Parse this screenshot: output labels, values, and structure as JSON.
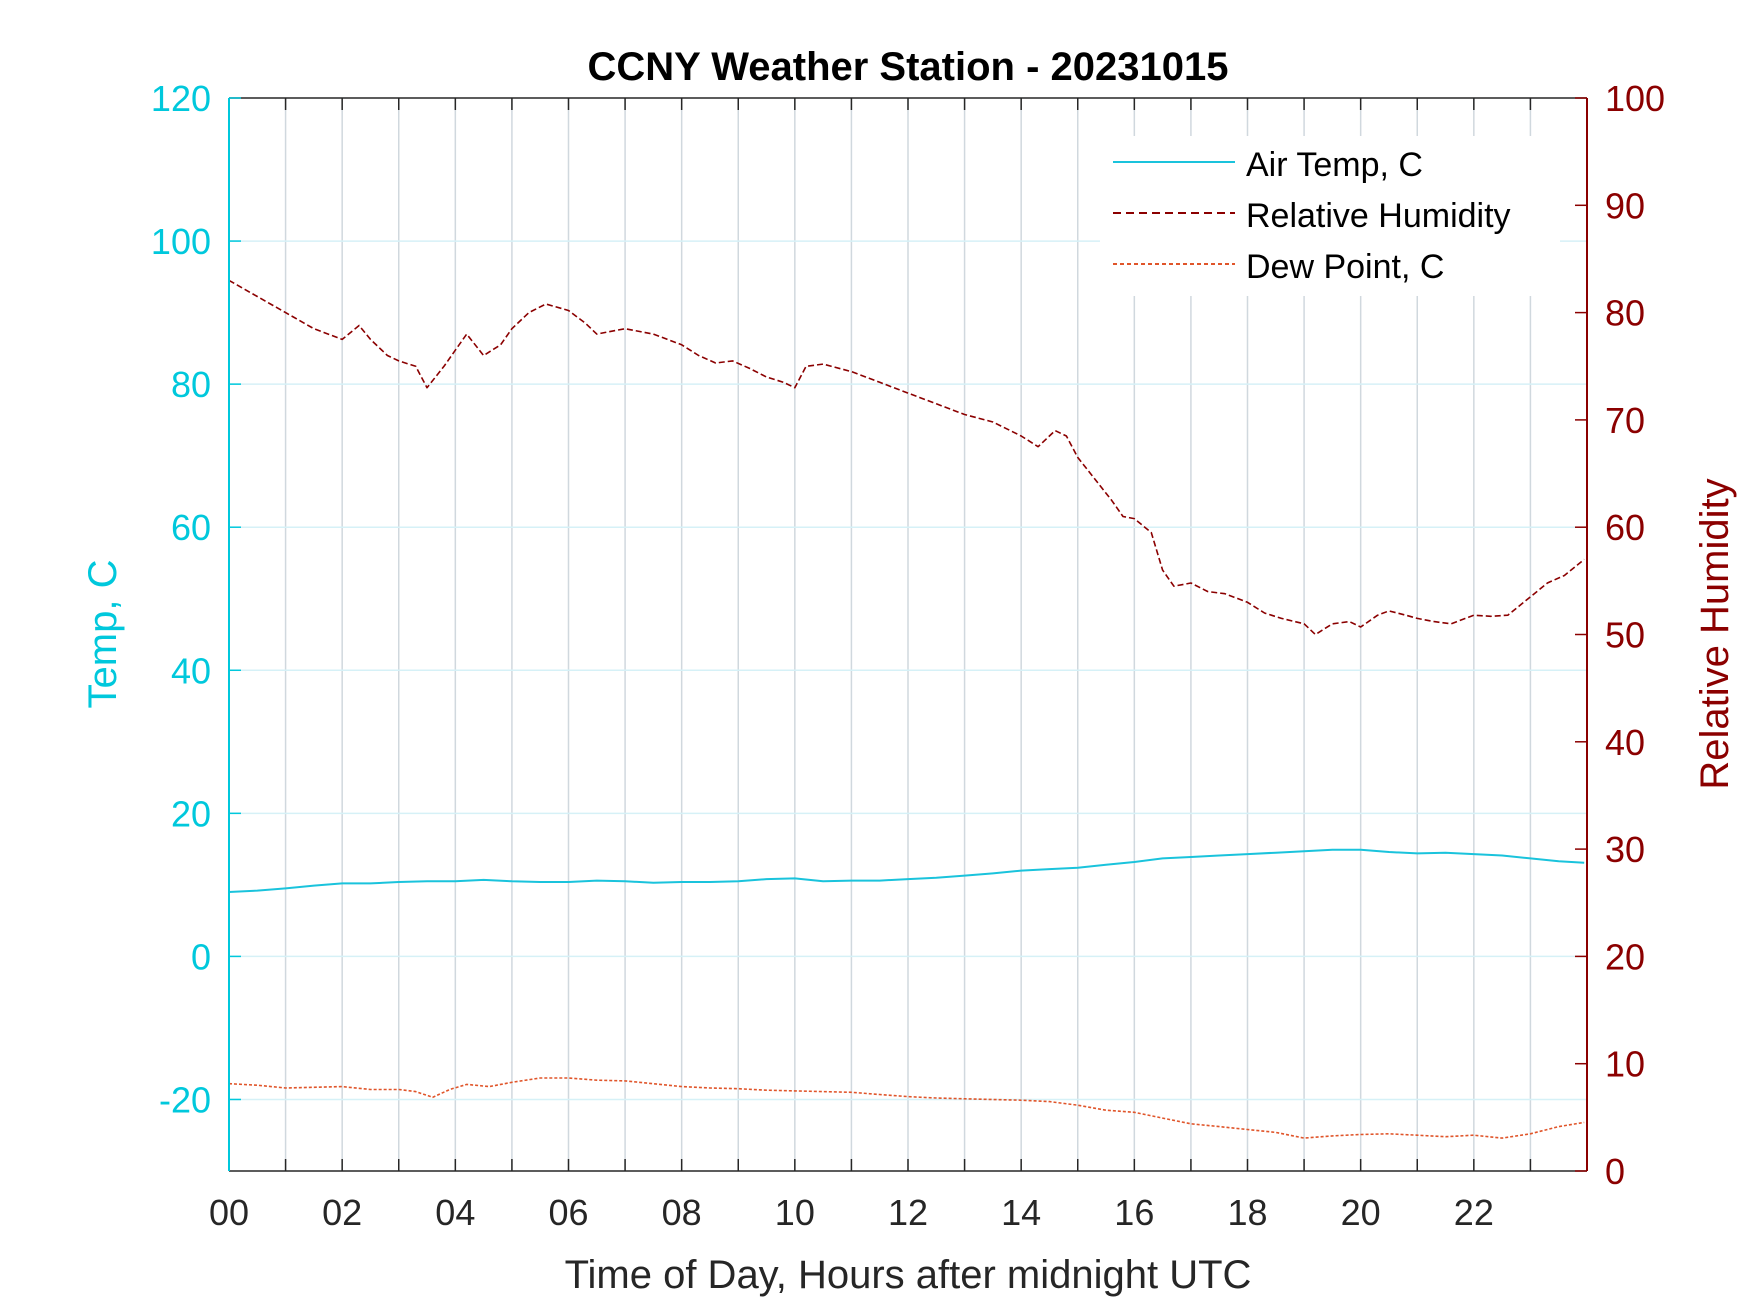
{
  "colors": {
    "air_temp": "#1ac3dc",
    "humidity": "#8b0000",
    "dew_point": "#e0552a",
    "left_axis": "#00c8dc",
    "right_axis": "#8b0000",
    "grid": "#d0d8de",
    "grid_h": "#d6f1f7"
  },
  "chart_data": {
    "type": "line",
    "title": "CCNY Weather Station - 20231015",
    "xlabel": "Time of Day, Hours after midnight UTC",
    "ylabel_left": "Temp, C",
    "ylabel_right": "Relative Humidity",
    "xlim": [
      0,
      24
    ],
    "ylim_left": [
      -30,
      120
    ],
    "ylim_right": [
      0,
      100
    ],
    "x_ticks": [
      0,
      2,
      4,
      6,
      8,
      10,
      12,
      14,
      16,
      18,
      20,
      22
    ],
    "x_tick_labels": [
      "00",
      "02",
      "04",
      "06",
      "08",
      "10",
      "12",
      "14",
      "16",
      "18",
      "20",
      "22"
    ],
    "y_left_ticks": [
      -20,
      0,
      20,
      40,
      60,
      80,
      100,
      120
    ],
    "y_left_tick_labels": [
      "-20",
      "0",
      "20",
      "40",
      "60",
      "80",
      "100",
      "120"
    ],
    "y_right_ticks": [
      0,
      10,
      20,
      30,
      40,
      50,
      60,
      70,
      80,
      90,
      100
    ],
    "y_right_tick_labels": [
      "0",
      "10",
      "20",
      "30",
      "40",
      "50",
      "60",
      "70",
      "80",
      "90",
      "100"
    ],
    "grid": true,
    "legend_position": "top-right",
    "series": [
      {
        "name": "Air Temp, C",
        "axis": "left",
        "style": "solid",
        "points": [
          [
            0,
            9.0
          ],
          [
            0.5,
            9.2
          ],
          [
            1.0,
            9.5
          ],
          [
            1.5,
            9.9
          ],
          [
            2.0,
            10.2
          ],
          [
            2.5,
            10.2
          ],
          [
            3.0,
            10.4
          ],
          [
            3.5,
            10.5
          ],
          [
            4.0,
            10.5
          ],
          [
            4.5,
            10.7
          ],
          [
            5.0,
            10.5
          ],
          [
            5.5,
            10.4
          ],
          [
            6.0,
            10.4
          ],
          [
            6.5,
            10.6
          ],
          [
            7.0,
            10.5
          ],
          [
            7.5,
            10.3
          ],
          [
            8.0,
            10.4
          ],
          [
            8.5,
            10.4
          ],
          [
            9.0,
            10.5
          ],
          [
            9.5,
            10.8
          ],
          [
            10.0,
            10.9
          ],
          [
            10.5,
            10.5
          ],
          [
            11.0,
            10.6
          ],
          [
            11.5,
            10.6
          ],
          [
            12.0,
            10.8
          ],
          [
            12.5,
            11.0
          ],
          [
            13.0,
            11.3
          ],
          [
            13.5,
            11.6
          ],
          [
            14.0,
            12.0
          ],
          [
            14.5,
            12.2
          ],
          [
            15.0,
            12.4
          ],
          [
            15.5,
            12.8
          ],
          [
            16.0,
            13.2
          ],
          [
            16.5,
            13.7
          ],
          [
            17.0,
            13.9
          ],
          [
            17.5,
            14.1
          ],
          [
            18.0,
            14.3
          ],
          [
            18.5,
            14.5
          ],
          [
            19.0,
            14.7
          ],
          [
            19.5,
            14.9
          ],
          [
            20.0,
            14.9
          ],
          [
            20.5,
            14.6
          ],
          [
            21.0,
            14.4
          ],
          [
            21.5,
            14.5
          ],
          [
            22.0,
            14.3
          ],
          [
            22.5,
            14.1
          ],
          [
            23.0,
            13.7
          ],
          [
            23.5,
            13.3
          ],
          [
            23.95,
            13.1
          ]
        ]
      },
      {
        "name": "Relative Humidity",
        "axis": "right",
        "style": "dashed",
        "points": [
          [
            0,
            83.0
          ],
          [
            0.5,
            81.5
          ],
          [
            1.0,
            80.0
          ],
          [
            1.5,
            78.5
          ],
          [
            2.0,
            77.5
          ],
          [
            2.3,
            78.8
          ],
          [
            2.5,
            77.5
          ],
          [
            2.8,
            76.0
          ],
          [
            3.0,
            75.5
          ],
          [
            3.3,
            75.0
          ],
          [
            3.5,
            73.0
          ],
          [
            3.8,
            75.0
          ],
          [
            4.0,
            76.5
          ],
          [
            4.2,
            78.0
          ],
          [
            4.5,
            76.0
          ],
          [
            4.8,
            77.0
          ],
          [
            5.0,
            78.5
          ],
          [
            5.3,
            80.0
          ],
          [
            5.6,
            80.8
          ],
          [
            6.0,
            80.2
          ],
          [
            6.3,
            79.0
          ],
          [
            6.5,
            78.0
          ],
          [
            6.8,
            78.3
          ],
          [
            7.0,
            78.5
          ],
          [
            7.5,
            78.0
          ],
          [
            8.0,
            77.0
          ],
          [
            8.3,
            76.0
          ],
          [
            8.6,
            75.3
          ],
          [
            8.9,
            75.5
          ],
          [
            9.2,
            74.8
          ],
          [
            9.5,
            74.0
          ],
          [
            9.8,
            73.5
          ],
          [
            10.0,
            73.0
          ],
          [
            10.2,
            75.0
          ],
          [
            10.5,
            75.2
          ],
          [
            11.0,
            74.5
          ],
          [
            11.5,
            73.5
          ],
          [
            12.0,
            72.5
          ],
          [
            12.5,
            71.5
          ],
          [
            13.0,
            70.5
          ],
          [
            13.5,
            69.8
          ],
          [
            14.0,
            68.5
          ],
          [
            14.3,
            67.5
          ],
          [
            14.6,
            69.0
          ],
          [
            14.8,
            68.5
          ],
          [
            15.0,
            66.5
          ],
          [
            15.3,
            64.5
          ],
          [
            15.6,
            62.5
          ],
          [
            15.8,
            61.0
          ],
          [
            16.0,
            60.8
          ],
          [
            16.3,
            59.5
          ],
          [
            16.5,
            56.0
          ],
          [
            16.7,
            54.5
          ],
          [
            17.0,
            54.8
          ],
          [
            17.3,
            54.0
          ],
          [
            17.6,
            53.8
          ],
          [
            18.0,
            53.0
          ],
          [
            18.3,
            52.0
          ],
          [
            18.6,
            51.5
          ],
          [
            19.0,
            51.0
          ],
          [
            19.2,
            50.0
          ],
          [
            19.5,
            51.0
          ],
          [
            19.8,
            51.2
          ],
          [
            20.0,
            50.7
          ],
          [
            20.3,
            51.8
          ],
          [
            20.5,
            52.2
          ],
          [
            20.8,
            51.8
          ],
          [
            21.0,
            51.5
          ],
          [
            21.3,
            51.2
          ],
          [
            21.6,
            51.0
          ],
          [
            22.0,
            51.8
          ],
          [
            22.3,
            51.7
          ],
          [
            22.6,
            51.8
          ],
          [
            23.0,
            53.5
          ],
          [
            23.3,
            54.8
          ],
          [
            23.6,
            55.5
          ],
          [
            23.95,
            57.0
          ]
        ]
      },
      {
        "name": "Dew Point, C",
        "axis": "left",
        "style": "dashed",
        "points": [
          [
            0,
            -17.8
          ],
          [
            0.5,
            -18.0
          ],
          [
            1.0,
            -18.4
          ],
          [
            1.5,
            -18.3
          ],
          [
            2.0,
            -18.2
          ],
          [
            2.5,
            -18.6
          ],
          [
            3.0,
            -18.6
          ],
          [
            3.3,
            -18.9
          ],
          [
            3.6,
            -19.7
          ],
          [
            3.9,
            -18.6
          ],
          [
            4.2,
            -17.9
          ],
          [
            4.6,
            -18.2
          ],
          [
            5.0,
            -17.6
          ],
          [
            5.5,
            -17.0
          ],
          [
            6.0,
            -17.0
          ],
          [
            6.5,
            -17.3
          ],
          [
            7.0,
            -17.4
          ],
          [
            7.5,
            -17.8
          ],
          [
            8.0,
            -18.2
          ],
          [
            8.5,
            -18.4
          ],
          [
            9.0,
            -18.5
          ],
          [
            9.5,
            -18.7
          ],
          [
            10.0,
            -18.8
          ],
          [
            10.5,
            -18.9
          ],
          [
            11.0,
            -19.0
          ],
          [
            11.5,
            -19.3
          ],
          [
            12.0,
            -19.6
          ],
          [
            12.5,
            -19.8
          ],
          [
            13.0,
            -19.9
          ],
          [
            13.5,
            -20.0
          ],
          [
            14.0,
            -20.1
          ],
          [
            14.5,
            -20.3
          ],
          [
            15.0,
            -20.8
          ],
          [
            15.5,
            -21.5
          ],
          [
            16.0,
            -21.8
          ],
          [
            16.5,
            -22.6
          ],
          [
            17.0,
            -23.4
          ],
          [
            17.5,
            -23.8
          ],
          [
            18.0,
            -24.2
          ],
          [
            18.5,
            -24.6
          ],
          [
            19.0,
            -25.4
          ],
          [
            19.5,
            -25.1
          ],
          [
            20.0,
            -24.9
          ],
          [
            20.5,
            -24.8
          ],
          [
            21.0,
            -25.0
          ],
          [
            21.5,
            -25.2
          ],
          [
            22.0,
            -25.0
          ],
          [
            22.5,
            -25.4
          ],
          [
            23.0,
            -24.8
          ],
          [
            23.5,
            -23.8
          ],
          [
            23.95,
            -23.2
          ]
        ]
      }
    ]
  }
}
